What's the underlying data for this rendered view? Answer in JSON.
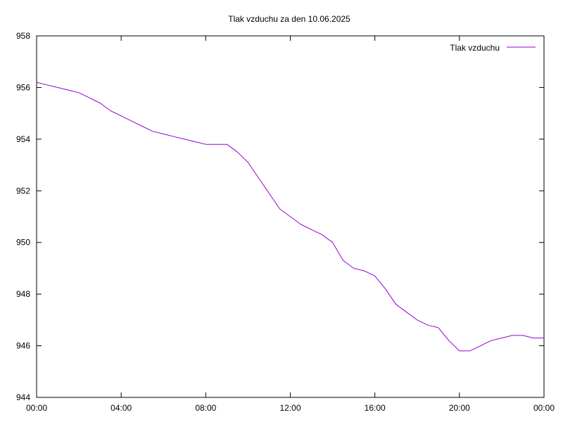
{
  "chart_data": {
    "type": "line",
    "title": "Tlak vzduchu za den 10.06.2025",
    "xlabel": "",
    "ylabel": "",
    "xlim": [
      0,
      24
    ],
    "ylim": [
      944,
      958
    ],
    "x_ticks": [
      {
        "value": 0,
        "label": "00:00"
      },
      {
        "value": 4,
        "label": "04:00"
      },
      {
        "value": 8,
        "label": "08:00"
      },
      {
        "value": 12,
        "label": "12:00"
      },
      {
        "value": 16,
        "label": "16:00"
      },
      {
        "value": 20,
        "label": "20:00"
      },
      {
        "value": 24,
        "label": "00:00"
      }
    ],
    "y_ticks": [
      {
        "value": 944,
        "label": "944"
      },
      {
        "value": 946,
        "label": "946"
      },
      {
        "value": 948,
        "label": "948"
      },
      {
        "value": 950,
        "label": "950"
      },
      {
        "value": 952,
        "label": "952"
      },
      {
        "value": 954,
        "label": "954"
      },
      {
        "value": 956,
        "label": "956"
      },
      {
        "value": 958,
        "label": "958"
      }
    ],
    "grid": false,
    "legend_position": "top-right",
    "series": [
      {
        "name": "Tlak vzduchu",
        "color": "#9400d3",
        "x": [
          0,
          0.5,
          1,
          1.5,
          2,
          2.5,
          3,
          3.5,
          4,
          4.5,
          5,
          5.5,
          6,
          6.5,
          7,
          7.5,
          8,
          8.5,
          9,
          9.5,
          10,
          10.5,
          11,
          11.5,
          12,
          12.5,
          13,
          13.5,
          14,
          14.5,
          15,
          15.5,
          16,
          16.5,
          17,
          17.5,
          18,
          18.5,
          19,
          19.5,
          20,
          20.5,
          21,
          21.5,
          22,
          22.5,
          23,
          23.5,
          24
        ],
        "values": [
          956.2,
          956.1,
          956.0,
          955.9,
          955.8,
          955.6,
          955.4,
          955.1,
          954.9,
          954.7,
          954.5,
          954.3,
          954.2,
          954.1,
          954.0,
          953.9,
          953.8,
          953.8,
          953.8,
          953.5,
          953.1,
          952.5,
          951.9,
          951.3,
          951.0,
          950.7,
          950.5,
          950.3,
          950.0,
          949.3,
          949.0,
          948.9,
          948.7,
          948.2,
          947.6,
          947.3,
          947.0,
          946.8,
          946.7,
          946.2,
          945.8,
          945.8,
          946.0,
          946.2,
          946.3,
          946.4,
          946.4,
          946.3,
          946.3
        ]
      }
    ]
  }
}
